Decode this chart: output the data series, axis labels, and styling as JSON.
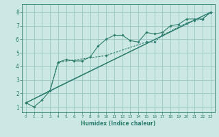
{
  "title": "",
  "xlabel": "Humidex (Indice chaleur)",
  "bg_color": "#cce8e4",
  "grid_color": "#a0ccc8",
  "line_color": "#2e7d6e",
  "xlim": [
    -0.5,
    23.5
  ],
  "ylim": [
    0.6,
    8.6
  ],
  "yticks": [
    1,
    2,
    3,
    4,
    5,
    6,
    7,
    8
  ],
  "xticks": [
    0,
    1,
    2,
    3,
    4,
    5,
    6,
    7,
    8,
    9,
    10,
    11,
    12,
    13,
    14,
    15,
    16,
    17,
    18,
    19,
    20,
    21,
    22,
    23
  ],
  "line1_x": [
    0,
    1,
    2,
    3,
    4,
    5,
    6,
    7,
    8,
    9,
    10,
    11,
    12,
    13,
    14,
    15,
    16,
    17,
    18,
    19,
    20,
    21,
    22,
    23
  ],
  "line1_y": [
    1.3,
    1.0,
    1.5,
    2.2,
    4.3,
    4.5,
    4.4,
    4.4,
    4.7,
    5.5,
    6.0,
    6.3,
    6.3,
    5.9,
    5.8,
    6.5,
    6.4,
    6.5,
    7.0,
    7.1,
    7.5,
    7.5,
    7.5,
    8.0
  ],
  "line2_x": [
    0,
    3,
    4,
    10,
    15,
    16,
    17,
    20,
    21,
    22,
    23
  ],
  "line2_y": [
    1.3,
    2.2,
    4.3,
    4.8,
    5.8,
    5.8,
    6.3,
    7.2,
    7.4,
    7.5,
    8.0
  ],
  "line3_x": [
    0,
    23
  ],
  "line3_y": [
    1.3,
    8.0
  ],
  "line4_x": [
    0,
    4,
    23
  ],
  "line4_y": [
    1.3,
    2.5,
    8.0
  ]
}
